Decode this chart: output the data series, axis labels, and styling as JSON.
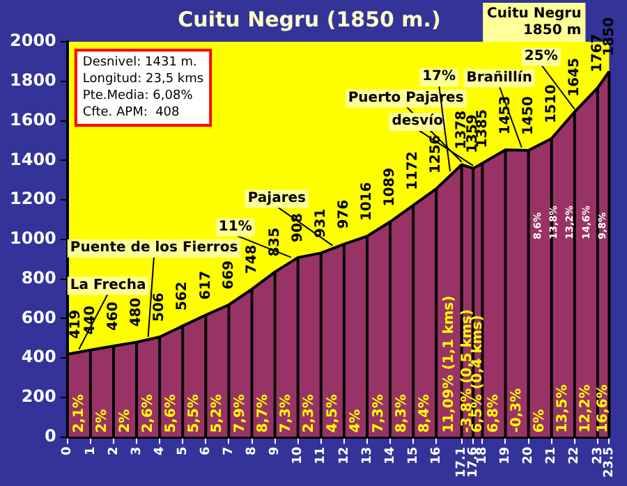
{
  "chart_data": {
    "type": "area",
    "title": "Cuitu Negru (1850 m.)",
    "x": [
      0,
      1,
      2,
      3,
      4,
      5,
      6,
      7,
      8,
      9,
      10,
      11,
      12,
      13,
      14,
      15,
      16,
      17.1,
      17.6,
      18,
      19,
      20,
      21,
      22,
      23,
      23.5
    ],
    "series": [
      {
        "color": "#993366",
        "values": [
          419,
          440,
          460,
          480,
          506,
          562,
          617,
          669,
          748,
          835,
          908,
          931,
          976,
          1016,
          1089,
          1172,
          1256,
          1378,
          1359,
          1385,
          1453,
          1450,
          1510,
          1645,
          1767,
          1850
        ]
      }
    ],
    "data_labels": true,
    "xlim": [
      0,
      23.5
    ],
    "xticks": [
      0,
      1,
      2,
      3,
      4,
      5,
      6,
      7,
      8,
      9,
      10,
      11,
      12,
      13,
      14,
      15,
      16,
      17.1,
      17.6,
      18,
      19,
      20,
      21,
      22,
      23,
      23.5
    ],
    "ylim": [
      0,
      2000
    ],
    "yticks": [
      0,
      200,
      400,
      600,
      800,
      1000,
      1200,
      1400,
      1600,
      1800,
      2000
    ],
    "grid": "x",
    "legend": false,
    "annotations": [
      "Desnivel: 1431 m.",
      "Longitud: 23,5 kms",
      "Pte.Media: 6,08%",
      "Cfte. APM:  408",
      "Cuitu Negru 1850 m",
      {
        "text": "La Frecha",
        "x": 0.5,
        "y": 430
      },
      {
        "text": "Puente de los Fierros",
        "x": 3.5,
        "y": 493
      },
      {
        "text": "Pajares",
        "x": 11.5,
        "y": 955
      },
      {
        "text": "Puerto Pajares",
        "x": 17.1,
        "y": 1378
      },
      {
        "text": "desvío",
        "x": 17.6,
        "y": 1359
      },
      {
        "text": "Brañillín",
        "x": 19.7,
        "y": 1452
      },
      {
        "text": "11%",
        "x": 9.7,
        "y": 895
      },
      {
        "text": "17%",
        "x": 16.6,
        "y": 1330
      },
      {
        "text": "25%",
        "x": 22,
        "y": 1645
      },
      {
        "text": "2,1%",
        "x": 0.5,
        "y": 0
      },
      {
        "text": "2%",
        "x": 1.5,
        "y": 0
      },
      {
        "text": "2%",
        "x": 2.5,
        "y": 0
      },
      {
        "text": "2,6%",
        "x": 3.5,
        "y": 0
      },
      {
        "text": "5,6%",
        "x": 4.5,
        "y": 0
      },
      {
        "text": "5,5%",
        "x": 5.5,
        "y": 0
      },
      {
        "text": "5,2%",
        "x": 6.5,
        "y": 0
      },
      {
        "text": "7,9%",
        "x": 7.5,
        "y": 0
      },
      {
        "text": "8,7%",
        "x": 8.5,
        "y": 0
      },
      {
        "text": "7,3%",
        "x": 9.5,
        "y": 0
      },
      {
        "text": "2,3%",
        "x": 10.5,
        "y": 0
      },
      {
        "text": "4,5%",
        "x": 11.5,
        "y": 0
      },
      {
        "text": "4%",
        "x": 12.5,
        "y": 0
      },
      {
        "text": "7,3%",
        "x": 13.5,
        "y": 0
      },
      {
        "text": "8,3%",
        "x": 14.5,
        "y": 0
      },
      {
        "text": "8,4%",
        "x": 15.5,
        "y": 0
      },
      {
        "text": "11,09% (1,1 kms)",
        "x": 16.55,
        "y": 0
      },
      {
        "text": "-3,8% (0,5 kms)",
        "x": 17.35,
        "y": 0
      },
      {
        "text": "6,5% (0,4 kms)",
        "x": 17.8,
        "y": 0
      },
      {
        "text": "6,8%",
        "x": 18.5,
        "y": 0
      },
      {
        "text": "-0,3%",
        "x": 19.5,
        "y": 0
      },
      {
        "text": "6%",
        "x": 20.5,
        "y": 0
      },
      {
        "text": "13,5%",
        "x": 21.5,
        "y": 0
      },
      {
        "text": "12,2%",
        "x": 22.5,
        "y": 0
      },
      {
        "text": "16,6%",
        "x": 23.25,
        "y": 0
      },
      "8,6%",
      "13,8%",
      "13,2%",
      "14,6%",
      "9,8%"
    ]
  }
}
